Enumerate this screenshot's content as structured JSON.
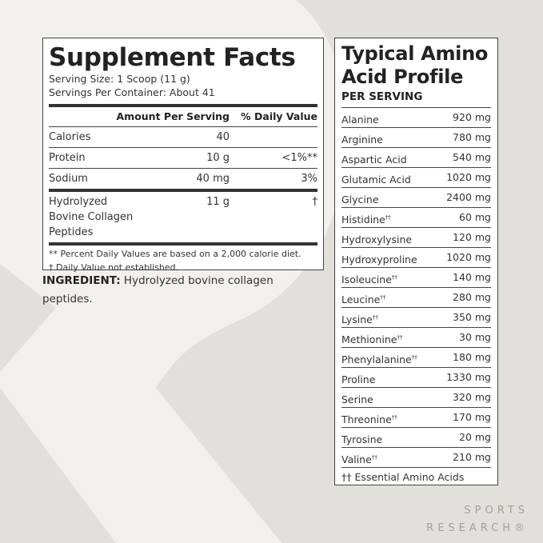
{
  "colors": {
    "background": "#e2e0da",
    "watermark": "#f1f0ec",
    "text": "#222222",
    "logo": "#a3a09a"
  },
  "supplement_facts": {
    "title": "Supplement Facts",
    "serving_size": "Serving Size: 1 Scoop (11 g)",
    "servings_per_container": "Servings Per Container: About 41",
    "header": {
      "amount": "Amount Per Serving",
      "daily_value": "% Daily Value"
    },
    "rows": [
      {
        "name": "Calories",
        "amount": "40",
        "dv": ""
      },
      {
        "name": "Protein",
        "amount": "10 g",
        "dv": "<1%**"
      },
      {
        "name": "Sodium",
        "amount": "40 mg",
        "dv": "3%"
      },
      {
        "name": "Hydrolyzed Bovine Collagen Peptides",
        "amount": "11 g",
        "dv": "†"
      }
    ],
    "footnotes": [
      "** Percent Daily Values are based on a 2,000 calorie diet.",
      "†  Daily Value not established."
    ]
  },
  "ingredient": {
    "label": "INGREDIENT:",
    "text": " Hydrolyzed bovine collagen peptides."
  },
  "amino_profile": {
    "title_line1": "Typical Amino",
    "title_line2": "Acid Profile",
    "subtitle": "PER SERVING",
    "rows": [
      {
        "name": "Alanine",
        "mark": "",
        "amount": "920 mg"
      },
      {
        "name": "Arginine",
        "mark": "",
        "amount": "780 mg"
      },
      {
        "name": "Aspartic Acid",
        "mark": "",
        "amount": "540 mg"
      },
      {
        "name": "Glutamic Acid",
        "mark": "",
        "amount": "1020 mg"
      },
      {
        "name": "Glycine",
        "mark": "",
        "amount": "2400 mg"
      },
      {
        "name": "Histidine",
        "mark": "††",
        "amount": "60 mg"
      },
      {
        "name": "Hydroxylysine",
        "mark": "",
        "amount": "120 mg"
      },
      {
        "name": "Hydroxyproline",
        "mark": "",
        "amount": "1020 mg"
      },
      {
        "name": "Isoleucine",
        "mark": "††",
        "amount": "140 mg"
      },
      {
        "name": "Leucine",
        "mark": "††",
        "amount": "280 mg"
      },
      {
        "name": "Lysine",
        "mark": "††",
        "amount": "350 mg"
      },
      {
        "name": "Methionine",
        "mark": "††",
        "amount": "30 mg"
      },
      {
        "name": "Phenylalanine",
        "mark": "††",
        "amount": "180 mg"
      },
      {
        "name": "Proline",
        "mark": "",
        "amount": "1330 mg"
      },
      {
        "name": "Serine",
        "mark": "",
        "amount": "320 mg"
      },
      {
        "name": "Threonine",
        "mark": "††",
        "amount": "170 mg"
      },
      {
        "name": "Tyrosine",
        "mark": "",
        "amount": "20 mg"
      },
      {
        "name": "Valine",
        "mark": "††",
        "amount": "210 mg"
      }
    ],
    "footnote": "†† Essential Amino Acids"
  },
  "logo": {
    "line1": "SPORTS",
    "line2": "RESEARCH®"
  }
}
